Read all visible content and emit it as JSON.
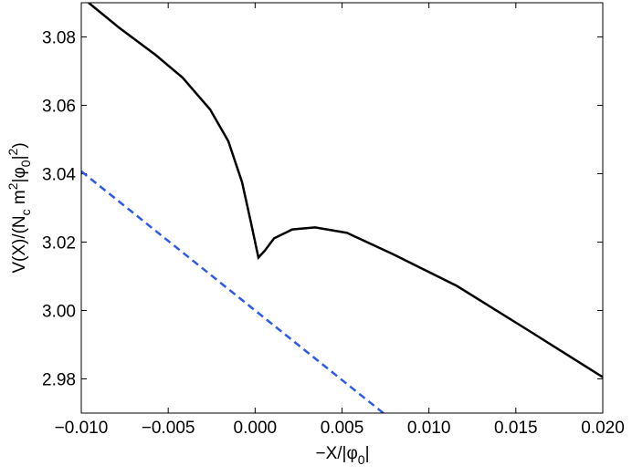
{
  "chart_data": {
    "type": "line",
    "xlabel": [
      "−X/|φ",
      "0",
      "|"
    ],
    "ylabel": [
      "V(X)/(N",
      "c",
      " m",
      "2",
      "|φ",
      "0",
      "|",
      "2",
      ")"
    ],
    "xlim": [
      -0.01,
      0.02
    ],
    "ylim": [
      2.97,
      3.09
    ],
    "xticks": [
      {
        "value": -0.01,
        "label": "−0.010"
      },
      {
        "value": -0.005,
        "label": "−0.005"
      },
      {
        "value": 0,
        "label": "0.000"
      },
      0.005,
      {
        "value": 0.01,
        "label": "0.010"
      },
      0.015,
      {
        "value": 0.02,
        "label": "0.020"
      }
    ],
    "yticks": [
      2.98,
      {
        "value": 3,
        "label": "3.00"
      },
      3.02,
      3.04,
      3.06,
      3.08
    ],
    "series": [
      {
        "color": "#000000",
        "dash": false,
        "x": [
          -0.00958,
          -0.00785,
          -0.00574,
          -0.00417,
          -0.00259,
          -0.00154,
          -0.00075,
          -0.00023,
          0.00019,
          0.00056,
          0.00109,
          0.00214,
          0.00345,
          0.00529,
          0.00792,
          0.0116,
          0.01581,
          0.02
        ],
        "values": [
          3.09,
          3.0828,
          3.0748,
          3.0681,
          3.0588,
          3.0495,
          3.0375,
          3.0255,
          3.0155,
          3.0175,
          3.0211,
          3.0237,
          3.0243,
          3.0227,
          3.0165,
          3.0072,
          2.9939,
          2.9805
        ]
      },
      {
        "color": "#2d5ae6",
        "dash": true,
        "x": [
          -0.01,
          0.0075
        ],
        "values": [
          3.0407,
          2.9695
        ]
      }
    ]
  }
}
